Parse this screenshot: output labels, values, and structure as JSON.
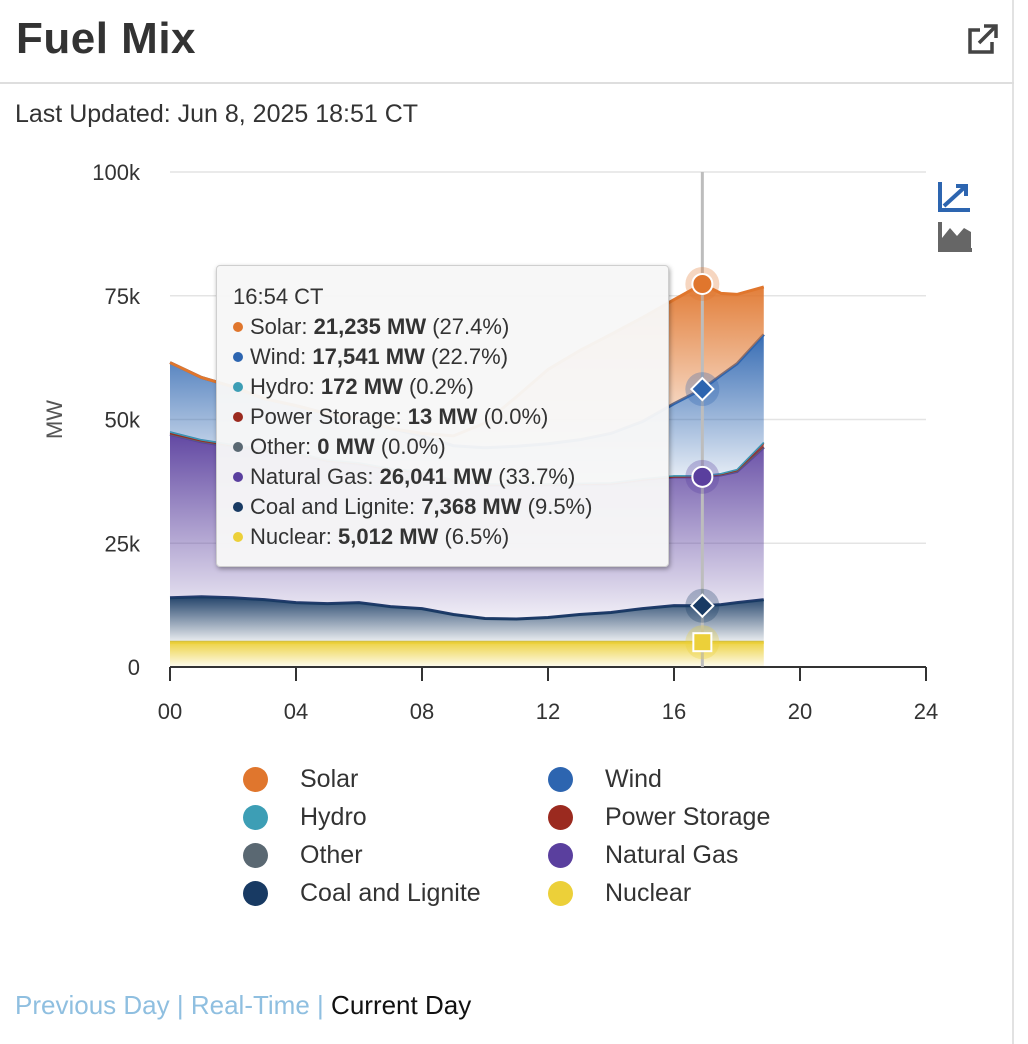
{
  "header": {
    "title": "Fuel Mix",
    "popout_icon": "external-link-icon"
  },
  "last_updated": "Last Updated: Jun 8, 2025 18:51 CT",
  "chart_controls": {
    "line_icon": "line-chart-icon",
    "area_icon": "area-chart-icon",
    "active_color": "#2d65b0"
  },
  "tooltip": {
    "time": "16:54 CT",
    "rows": [
      {
        "label": "Solar:",
        "value": "21,235 MW",
        "pct": "(27.4%)",
        "color": "#e0762d"
      },
      {
        "label": "Wind:",
        "value": "17,541 MW",
        "pct": "(22.7%)",
        "color": "#2d65b0"
      },
      {
        "label": "Hydro:",
        "value": "172 MW",
        "pct": "(0.2%)",
        "color": "#3d9eb5"
      },
      {
        "label": "Power Storage:",
        "value": "13 MW",
        "pct": "(0.0%)",
        "color": "#9b2a1f"
      },
      {
        "label": "Other:",
        "value": "0 MW",
        "pct": "(0.0%)",
        "color": "#5a6872"
      },
      {
        "label": "Natural Gas:",
        "value": "26,041 MW",
        "pct": "(33.7%)",
        "color": "#5a3f9e"
      },
      {
        "label": "Coal and Lignite:",
        "value": "7,368 MW",
        "pct": "(9.5%)",
        "color": "#183a63"
      },
      {
        "label": "Nuclear:",
        "value": "5,012 MW",
        "pct": "(6.5%)",
        "color": "#ecd039"
      }
    ]
  },
  "legend": [
    {
      "label": "Solar",
      "color": "#e0762d"
    },
    {
      "label": "Wind",
      "color": "#2d65b0"
    },
    {
      "label": "Hydro",
      "color": "#3d9eb5"
    },
    {
      "label": "Power Storage",
      "color": "#9b2a1f"
    },
    {
      "label": "Other",
      "color": "#5a6872"
    },
    {
      "label": "Natural Gas",
      "color": "#5a3f9e"
    },
    {
      "label": "Coal and Lignite",
      "color": "#183a63"
    },
    {
      "label": "Nuclear",
      "color": "#ecd039"
    }
  ],
  "footer": {
    "previous": "Previous Day",
    "sep1": "|",
    "realtime": "Real-Time",
    "sep2": "|",
    "current": "Current Day"
  },
  "chart_data": {
    "type": "area",
    "stacked": true,
    "ylabel": "MW",
    "xlabel": "",
    "ylim": [
      0,
      100000
    ],
    "xlim": [
      0,
      24
    ],
    "yticks": [
      "0",
      "25k",
      "50k",
      "75k",
      "100k"
    ],
    "xticks": [
      "00",
      "04",
      "08",
      "12",
      "16",
      "20",
      "24"
    ],
    "grid": true,
    "legend_position": "bottom",
    "crosshair_x": 16.9,
    "x": [
      0,
      1,
      2,
      3,
      4,
      5,
      6,
      7,
      8,
      9,
      10,
      11,
      12,
      13,
      14,
      15,
      16,
      16.9,
      17.5,
      18,
      18.85
    ],
    "series": [
      {
        "name": "Nuclear",
        "color": "#ecd039",
        "values": [
          5000,
          5000,
          5000,
          5000,
          5000,
          5000,
          5000,
          5000,
          5000,
          5000,
          5000,
          5000,
          5000,
          5000,
          5000,
          5000,
          5000,
          5012,
          5000,
          5000,
          5000
        ]
      },
      {
        "name": "Coal and Lignite",
        "color": "#183a63",
        "values": [
          9000,
          9200,
          9000,
          8600,
          8000,
          7800,
          8000,
          7200,
          6800,
          5600,
          4800,
          4700,
          5000,
          5600,
          6000,
          6800,
          7400,
          7368,
          7600,
          8000,
          8600
        ]
      },
      {
        "name": "Natural Gas",
        "color": "#5a3f9e",
        "values": [
          33000,
          31300,
          30500,
          30200,
          30000,
          28800,
          28000,
          27700,
          27500,
          27000,
          27000,
          27000,
          26800,
          26300,
          26000,
          26000,
          26000,
          26041,
          26200,
          26500,
          30800
        ]
      },
      {
        "name": "Other",
        "color": "#5a6872",
        "values": [
          0,
          0,
          0,
          0,
          0,
          0,
          0,
          0,
          0,
          0,
          0,
          0,
          0,
          0,
          0,
          0,
          0,
          0,
          0,
          0,
          0
        ]
      },
      {
        "name": "Power Storage",
        "color": "#9b2a1f",
        "values": [
          300,
          200,
          200,
          100,
          100,
          50,
          50,
          0,
          0,
          0,
          0,
          0,
          0,
          0,
          0,
          0,
          20,
          13,
          100,
          200,
          800
        ]
      },
      {
        "name": "Hydro",
        "color": "#3d9eb5",
        "values": [
          200,
          200,
          200,
          200,
          200,
          200,
          200,
          200,
          200,
          200,
          200,
          200,
          200,
          200,
          200,
          200,
          180,
          172,
          170,
          170,
          170
        ]
      },
      {
        "name": "Wind",
        "color": "#2d65b0",
        "values": [
          14000,
          12600,
          11700,
          10100,
          9500,
          9300,
          9000,
          8100,
          7200,
          6900,
          7300,
          7700,
          8100,
          8800,
          10000,
          11600,
          14600,
          17541,
          19900,
          21400,
          21800
        ]
      },
      {
        "name": "Solar",
        "color": "#e0762d",
        "values": [
          0,
          0,
          0,
          0,
          0,
          0,
          0,
          0,
          500,
          2000,
          5000,
          10000,
          15000,
          18000,
          20000,
          21000,
          21000,
          21235,
          16500,
          14000,
          9600
        ]
      }
    ]
  }
}
